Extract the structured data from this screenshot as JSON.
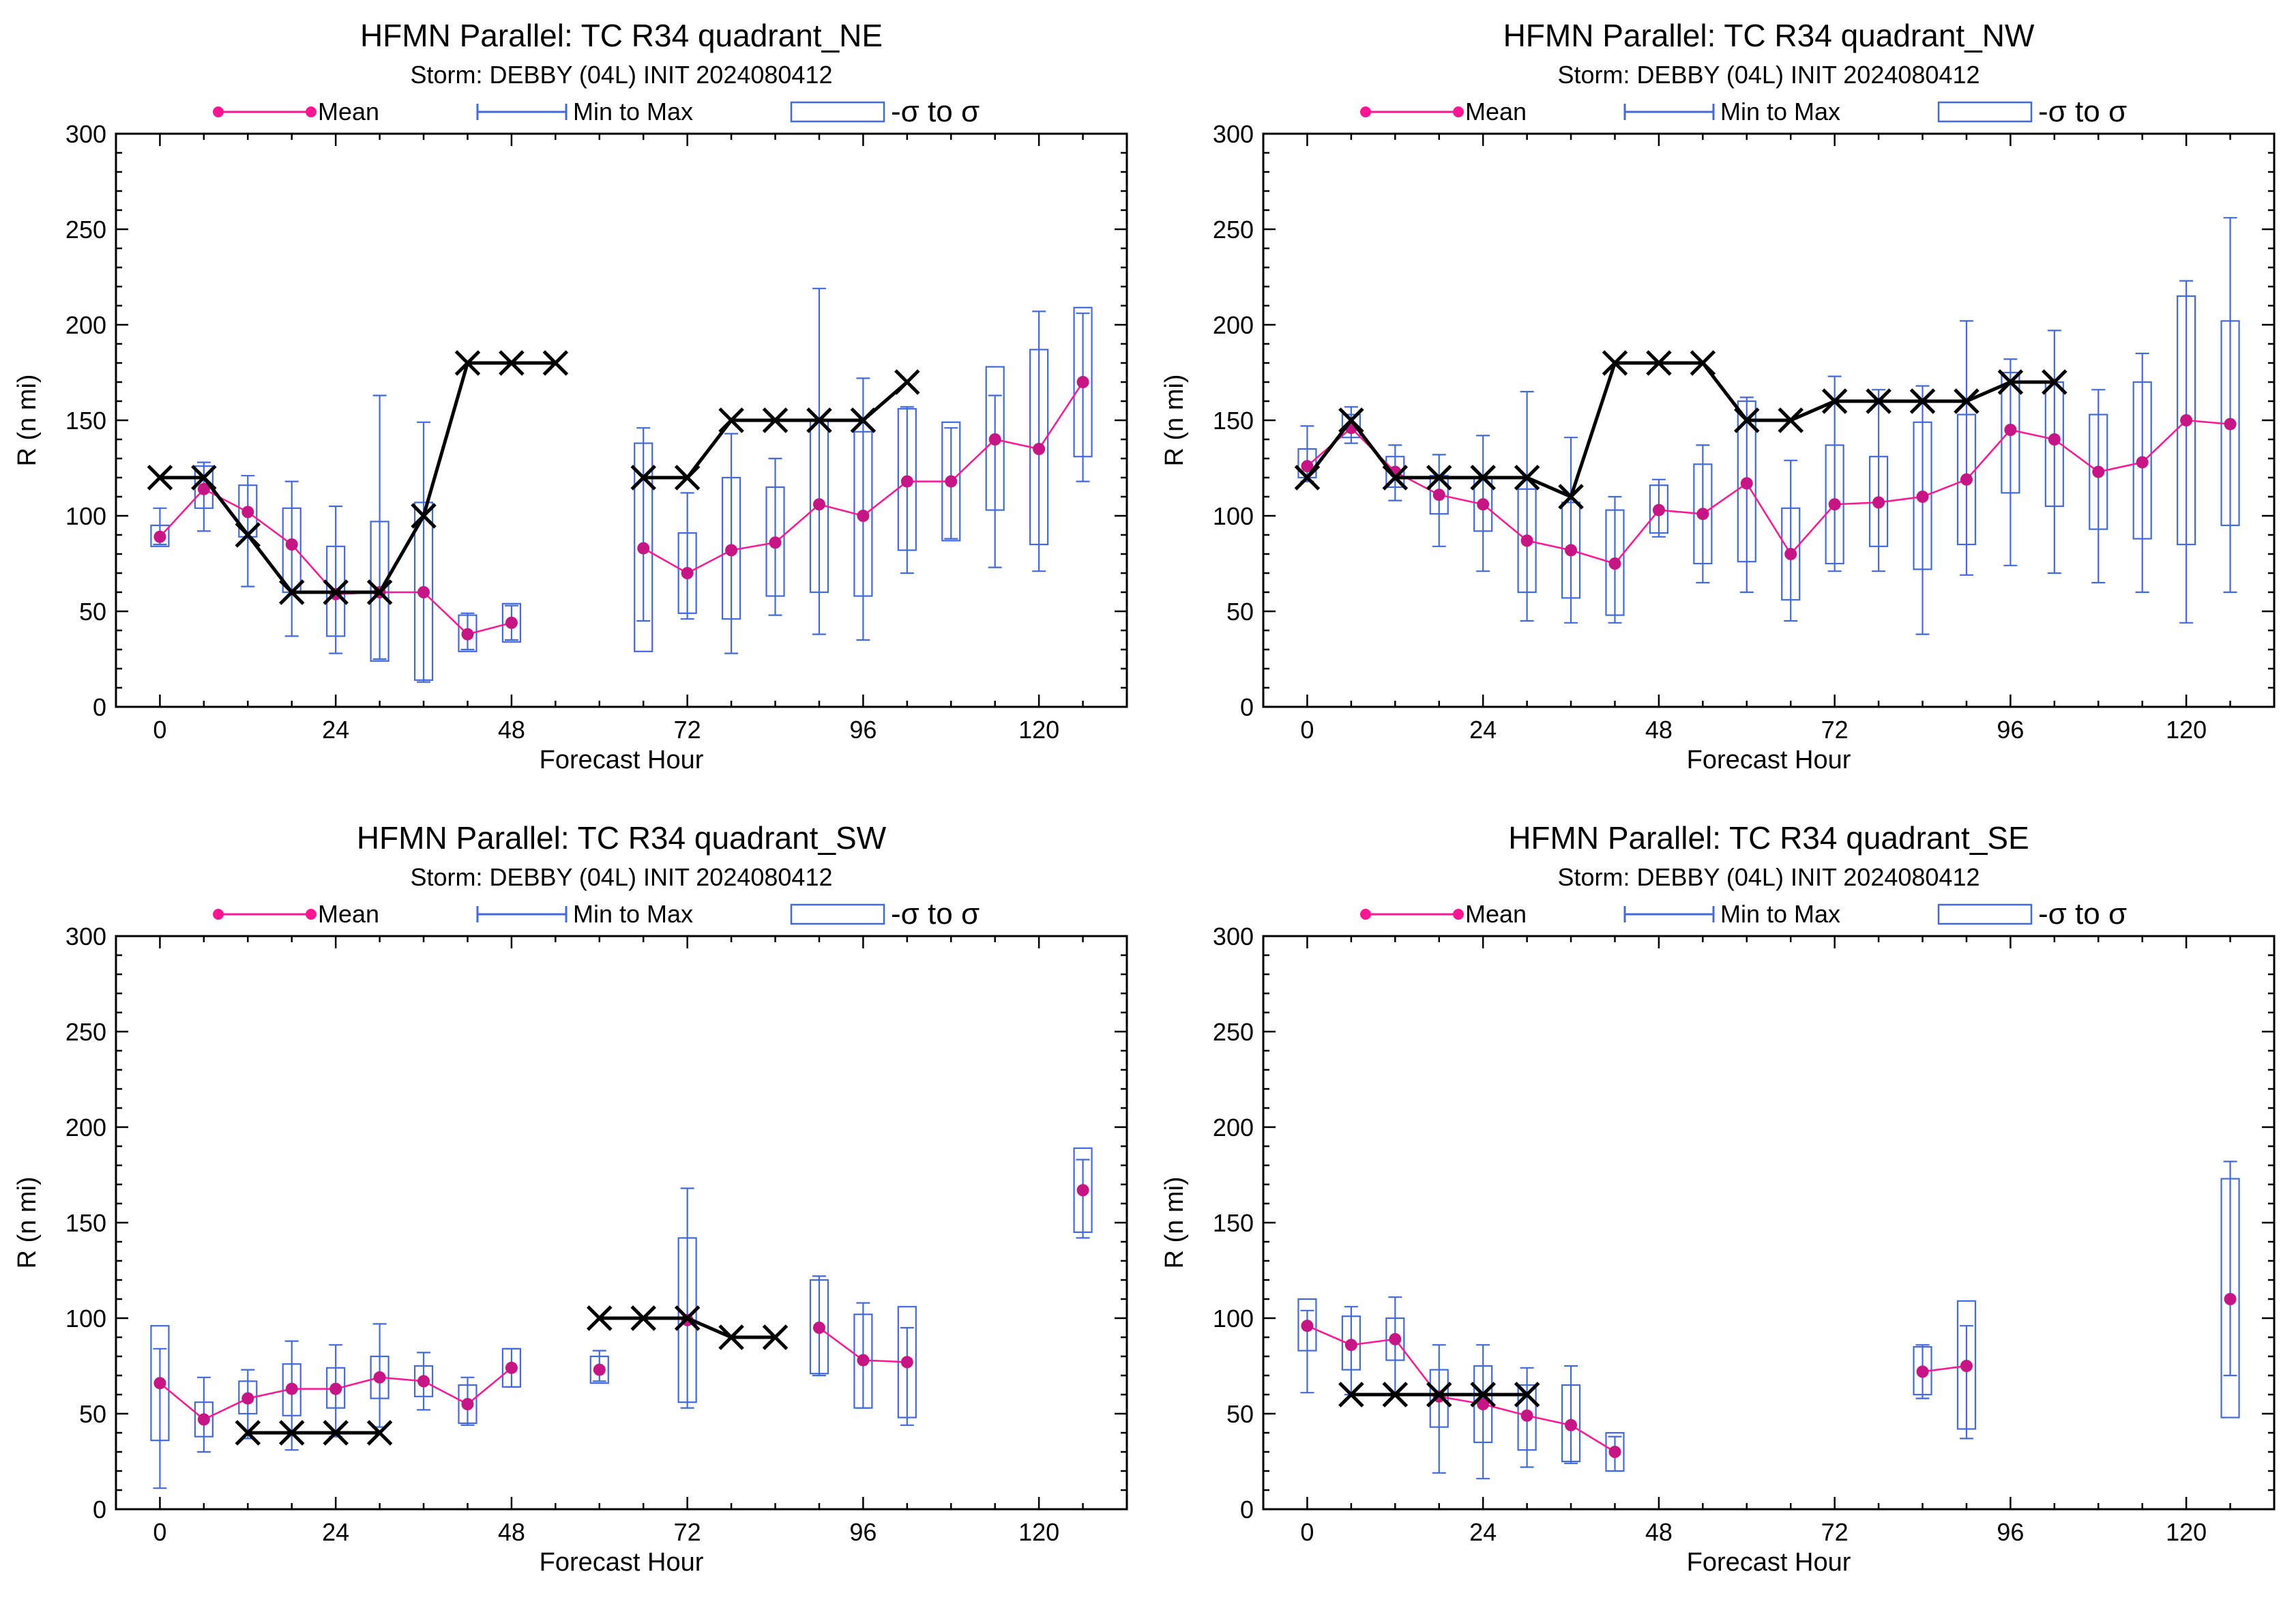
{
  "colors": {
    "mean": "#ff1493",
    "mean_marker": "#c71585",
    "range": "#4169e1",
    "best_track": "#000000"
  },
  "legend": {
    "mean_label": "Mean",
    "range_label": "Min to Max",
    "sigma_label": "-σ to σ"
  },
  "chart_data": [
    {
      "type": "box",
      "title": "HFMN Parallel: TC  R34 quadrant_NE",
      "subtitle": "Storm: DEBBY (04L) INIT 2024080412",
      "xlabel": "Forecast Hour",
      "ylabel": "R (n mi)",
      "xlim": [
        -6,
        132
      ],
      "ylim": [
        0,
        300
      ],
      "xticks": [
        0,
        24,
        48,
        72,
        96,
        120
      ],
      "yticks": [
        0,
        50,
        100,
        150,
        200,
        250,
        300
      ],
      "stats": [
        {
          "x": 0,
          "mean": 89,
          "min": 85,
          "max": 104,
          "sd_low": 84,
          "sd_high": 95
        },
        {
          "x": 6,
          "mean": 114,
          "min": 92,
          "max": 128,
          "sd_low": 104,
          "sd_high": 126
        },
        {
          "x": 12,
          "mean": 102,
          "min": 63,
          "max": 121,
          "sd_low": 89,
          "sd_high": 116
        },
        {
          "x": 18,
          "mean": 85,
          "min": 37,
          "max": 118,
          "sd_low": 60,
          "sd_high": 104
        },
        {
          "x": 24,
          "mean": 59,
          "min": 28,
          "max": 105,
          "sd_low": 37,
          "sd_high": 84
        },
        {
          "x": 30,
          "mean": 60,
          "min": 25,
          "max": 163,
          "sd_low": 24,
          "sd_high": 97
        },
        {
          "x": 36,
          "mean": 60,
          "min": 13,
          "max": 149,
          "sd_low": 14,
          "sd_high": 107
        },
        {
          "x": 42,
          "mean": 38,
          "min": 30,
          "max": 49,
          "sd_low": 29,
          "sd_high": 48
        },
        {
          "x": 48,
          "mean": 44,
          "min": 35,
          "max": 53,
          "sd_low": 34,
          "sd_high": 54
        },
        {
          "x": 66,
          "mean": 83,
          "min": 45,
          "max": 146,
          "sd_low": 29,
          "sd_high": 138
        },
        {
          "x": 72,
          "mean": 70,
          "min": 46,
          "max": 112,
          "sd_low": 49,
          "sd_high": 91
        },
        {
          "x": 78,
          "mean": 82,
          "min": 28,
          "max": 143,
          "sd_low": 46,
          "sd_high": 120
        },
        {
          "x": 84,
          "mean": 86,
          "min": 48,
          "max": 130,
          "sd_low": 58,
          "sd_high": 115
        },
        {
          "x": 90,
          "mean": 106,
          "min": 38,
          "max": 219,
          "sd_low": 60,
          "sd_high": 150
        },
        {
          "x": 96,
          "mean": 100,
          "min": 35,
          "max": 172,
          "sd_low": 58,
          "sd_high": 144
        },
        {
          "x": 102,
          "mean": 118,
          "min": 70,
          "max": 157,
          "sd_low": 82,
          "sd_high": 156
        },
        {
          "x": 108,
          "mean": 118,
          "min": 88,
          "max": 146,
          "sd_low": 87,
          "sd_high": 149
        },
        {
          "x": 114,
          "mean": 140,
          "min": 73,
          "max": 163,
          "sd_low": 103,
          "sd_high": 178
        },
        {
          "x": 120,
          "mean": 135,
          "min": 71,
          "max": 207,
          "sd_low": 85,
          "sd_high": 187
        },
        {
          "x": 126,
          "mean": 170,
          "min": 118,
          "max": 206,
          "sd_low": 131,
          "sd_high": 209
        }
      ],
      "best_track": [
        {
          "x": 0,
          "y": 120
        },
        {
          "x": 6,
          "y": 120
        },
        {
          "x": 12,
          "y": 90
        },
        {
          "x": 18,
          "y": 60
        },
        {
          "x": 24,
          "y": 60
        },
        {
          "x": 30,
          "y": 60
        },
        {
          "x": 36,
          "y": 100
        },
        {
          "x": 42,
          "y": 180
        },
        {
          "x": 48,
          "y": 180
        },
        {
          "x": 54,
          "y": 180
        },
        {
          "x": 66,
          "y": 120
        },
        {
          "x": 72,
          "y": 120
        },
        {
          "x": 78,
          "y": 150
        },
        {
          "x": 84,
          "y": 150
        },
        {
          "x": 90,
          "y": 150
        },
        {
          "x": 96,
          "y": 150
        },
        {
          "x": 102,
          "y": 170
        }
      ]
    },
    {
      "type": "box",
      "title": "HFMN Parallel: TC  R34 quadrant_NW",
      "subtitle": "Storm: DEBBY (04L) INIT 2024080412",
      "xlabel": "Forecast Hour",
      "ylabel": "R (n mi)",
      "xlim": [
        -6,
        132
      ],
      "ylim": [
        0,
        300
      ],
      "xticks": [
        0,
        24,
        48,
        72,
        96,
        120
      ],
      "yticks": [
        0,
        50,
        100,
        150,
        200,
        250,
        300
      ],
      "stats": [
        {
          "x": 0,
          "mean": 126,
          "min": 118,
          "max": 147,
          "sd_low": 120,
          "sd_high": 135
        },
        {
          "x": 6,
          "mean": 146,
          "min": 138,
          "max": 157,
          "sd_low": 141,
          "sd_high": 153
        },
        {
          "x": 12,
          "mean": 123,
          "min": 108,
          "max": 137,
          "sd_low": 115,
          "sd_high": 131
        },
        {
          "x": 18,
          "mean": 111,
          "min": 84,
          "max": 132,
          "sd_low": 101,
          "sd_high": 121
        },
        {
          "x": 24,
          "mean": 106,
          "min": 71,
          "max": 142,
          "sd_low": 92,
          "sd_high": 120
        },
        {
          "x": 30,
          "mean": 87,
          "min": 45,
          "max": 165,
          "sd_low": 60,
          "sd_high": 114
        },
        {
          "x": 36,
          "mean": 82,
          "min": 44,
          "max": 141,
          "sd_low": 57,
          "sd_high": 107
        },
        {
          "x": 42,
          "mean": 75,
          "min": 44,
          "max": 110,
          "sd_low": 48,
          "sd_high": 103
        },
        {
          "x": 48,
          "mean": 103,
          "min": 89,
          "max": 119,
          "sd_low": 91,
          "sd_high": 116
        },
        {
          "x": 54,
          "mean": 101,
          "min": 65,
          "max": 137,
          "sd_low": 75,
          "sd_high": 127
        },
        {
          "x": 60,
          "mean": 117,
          "min": 60,
          "max": 162,
          "sd_low": 76,
          "sd_high": 160
        },
        {
          "x": 66,
          "mean": 80,
          "min": 45,
          "max": 129,
          "sd_low": 56,
          "sd_high": 104
        },
        {
          "x": 72,
          "mean": 106,
          "min": 71,
          "max": 173,
          "sd_low": 75,
          "sd_high": 137
        },
        {
          "x": 78,
          "mean": 107,
          "min": 71,
          "max": 166,
          "sd_low": 84,
          "sd_high": 131
        },
        {
          "x": 84,
          "mean": 110,
          "min": 38,
          "max": 168,
          "sd_low": 72,
          "sd_high": 149
        },
        {
          "x": 90,
          "mean": 119,
          "min": 69,
          "max": 202,
          "sd_low": 85,
          "sd_high": 153
        },
        {
          "x": 96,
          "mean": 145,
          "min": 74,
          "max": 182,
          "sd_low": 112,
          "sd_high": 175
        },
        {
          "x": 102,
          "mean": 140,
          "min": 70,
          "max": 197,
          "sd_low": 105,
          "sd_high": 170
        },
        {
          "x": 108,
          "mean": 123,
          "min": 65,
          "max": 166,
          "sd_low": 93,
          "sd_high": 153
        },
        {
          "x": 114,
          "mean": 128,
          "min": 60,
          "max": 185,
          "sd_low": 88,
          "sd_high": 170
        },
        {
          "x": 120,
          "mean": 150,
          "min": 44,
          "max": 223,
          "sd_low": 85,
          "sd_high": 215
        },
        {
          "x": 126,
          "mean": 148,
          "min": 60,
          "max": 256,
          "sd_low": 95,
          "sd_high": 202
        }
      ],
      "best_track": [
        {
          "x": 0,
          "y": 120
        },
        {
          "x": 6,
          "y": 150
        },
        {
          "x": 12,
          "y": 120
        },
        {
          "x": 18,
          "y": 120
        },
        {
          "x": 24,
          "y": 120
        },
        {
          "x": 30,
          "y": 120
        },
        {
          "x": 36,
          "y": 110
        },
        {
          "x": 42,
          "y": 180
        },
        {
          "x": 48,
          "y": 180
        },
        {
          "x": 54,
          "y": 180
        },
        {
          "x": 60,
          "y": 150
        },
        {
          "x": 66,
          "y": 150
        },
        {
          "x": 72,
          "y": 160
        },
        {
          "x": 78,
          "y": 160
        },
        {
          "x": 84,
          "y": 160
        },
        {
          "x": 90,
          "y": 160
        },
        {
          "x": 96,
          "y": 170
        },
        {
          "x": 102,
          "y": 170
        }
      ]
    },
    {
      "type": "box",
      "title": "HFMN Parallel: TC  R34 quadrant_SW",
      "subtitle": "Storm: DEBBY (04L) INIT 2024080412",
      "xlabel": "Forecast Hour",
      "ylabel": "R (n mi)",
      "xlim": [
        -6,
        132
      ],
      "ylim": [
        0,
        300
      ],
      "xticks": [
        0,
        24,
        48,
        72,
        96,
        120
      ],
      "yticks": [
        0,
        50,
        100,
        150,
        200,
        250,
        300
      ],
      "stats": [
        {
          "x": 0,
          "mean": 66,
          "min": 11,
          "max": 84,
          "sd_low": 36,
          "sd_high": 96
        },
        {
          "x": 6,
          "mean": 47,
          "min": 30,
          "max": 69,
          "sd_low": 38,
          "sd_high": 56
        },
        {
          "x": 12,
          "mean": 58,
          "min": 37,
          "max": 73,
          "sd_low": 50,
          "sd_high": 67
        },
        {
          "x": 18,
          "mean": 63,
          "min": 31,
          "max": 88,
          "sd_low": 49,
          "sd_high": 76
        },
        {
          "x": 24,
          "mean": 63,
          "min": 38,
          "max": 86,
          "sd_low": 53,
          "sd_high": 74
        },
        {
          "x": 30,
          "mean": 69,
          "min": 43,
          "max": 97,
          "sd_low": 58,
          "sd_high": 80
        },
        {
          "x": 36,
          "mean": 67,
          "min": 52,
          "max": 82,
          "sd_low": 59,
          "sd_high": 75
        },
        {
          "x": 42,
          "mean": 55,
          "min": 44,
          "max": 69,
          "sd_low": 45,
          "sd_high": 65
        },
        {
          "x": 48,
          "mean": 74,
          "min": 64,
          "max": 84,
          "sd_low": 64,
          "sd_high": 84
        },
        {
          "x": 60,
          "mean": 73,
          "min": 67,
          "max": 83,
          "sd_low": 66,
          "sd_high": 80
        },
        {
          "x": 72,
          "mean": 99,
          "min": 53,
          "max": 168,
          "sd_low": 56,
          "sd_high": 142
        },
        {
          "x": 90,
          "mean": 95,
          "min": 70,
          "max": 122,
          "sd_low": 71,
          "sd_high": 120
        },
        {
          "x": 96,
          "mean": 78,
          "min": 53,
          "max": 108,
          "sd_low": 53,
          "sd_high": 102
        },
        {
          "x": 102,
          "mean": 77,
          "min": 44,
          "max": 95,
          "sd_low": 48,
          "sd_high": 106
        },
        {
          "x": 126,
          "mean": 167,
          "min": 142,
          "max": 183,
          "sd_low": 145,
          "sd_high": 189
        }
      ],
      "best_track": [
        {
          "x": 12,
          "y": 40
        },
        {
          "x": 18,
          "y": 40
        },
        {
          "x": 24,
          "y": 40
        },
        {
          "x": 30,
          "y": 40
        },
        {
          "x": 60,
          "y": 100
        },
        {
          "x": 66,
          "y": 100
        },
        {
          "x": 72,
          "y": 100
        },
        {
          "x": 78,
          "y": 90
        },
        {
          "x": 84,
          "y": 90
        }
      ]
    },
    {
      "type": "box",
      "title": "HFMN Parallel: TC  R34 quadrant_SE",
      "subtitle": "Storm: DEBBY (04L) INIT 2024080412",
      "xlabel": "Forecast Hour",
      "ylabel": "R (n mi)",
      "xlim": [
        -6,
        132
      ],
      "ylim": [
        0,
        300
      ],
      "xticks": [
        0,
        24,
        48,
        72,
        96,
        120
      ],
      "yticks": [
        0,
        50,
        100,
        150,
        200,
        250,
        300
      ],
      "stats": [
        {
          "x": 0,
          "mean": 96,
          "min": 61,
          "max": 104,
          "sd_low": 83,
          "sd_high": 110
        },
        {
          "x": 6,
          "mean": 86,
          "min": 60,
          "max": 106,
          "sd_low": 73,
          "sd_high": 101
        },
        {
          "x": 12,
          "mean": 89,
          "min": 60,
          "max": 111,
          "sd_low": 78,
          "sd_high": 100
        },
        {
          "x": 18,
          "mean": 59,
          "min": 19,
          "max": 86,
          "sd_low": 43,
          "sd_high": 73
        },
        {
          "x": 24,
          "mean": 55,
          "min": 16,
          "max": 86,
          "sd_low": 35,
          "sd_high": 75
        },
        {
          "x": 30,
          "mean": 49,
          "min": 22,
          "max": 74,
          "sd_low": 31,
          "sd_high": 65
        },
        {
          "x": 36,
          "mean": 44,
          "min": 24,
          "max": 75,
          "sd_low": 25,
          "sd_high": 65
        },
        {
          "x": 42,
          "mean": 30,
          "min": 20,
          "max": 38,
          "sd_low": 20,
          "sd_high": 40
        },
        {
          "x": 84,
          "mean": 72,
          "min": 58,
          "max": 86,
          "sd_low": 60,
          "sd_high": 85
        },
        {
          "x": 90,
          "mean": 75,
          "min": 37,
          "max": 96,
          "sd_low": 42,
          "sd_high": 109
        },
        {
          "x": 126,
          "mean": 110,
          "min": 70,
          "max": 182,
          "sd_low": 48,
          "sd_high": 173
        }
      ],
      "best_track": [
        {
          "x": 6,
          "y": 60
        },
        {
          "x": 12,
          "y": 60
        },
        {
          "x": 18,
          "y": 60
        },
        {
          "x": 24,
          "y": 60
        },
        {
          "x": 30,
          "y": 60
        }
      ]
    }
  ]
}
